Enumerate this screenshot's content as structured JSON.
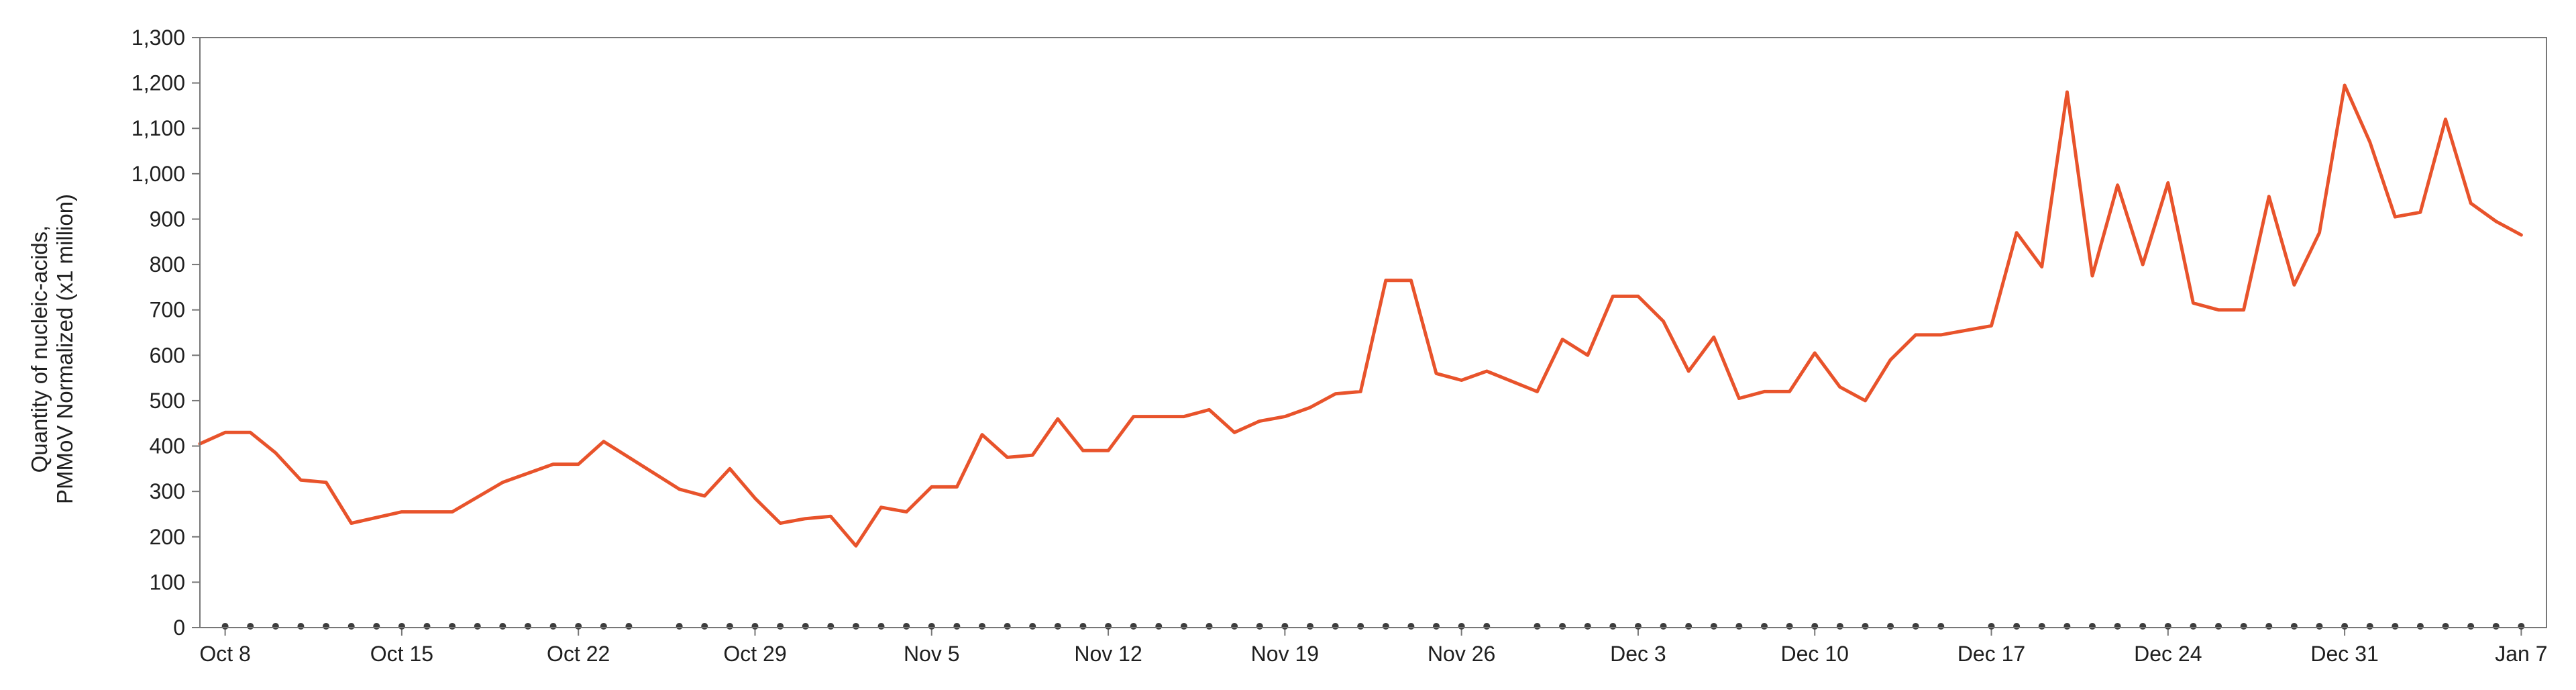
{
  "chart_data": {
    "type": "line",
    "title": "",
    "ylabel_lines": [
      "Quantity of nucleic-acids,",
      "PMMoV Normalized (x1 million)"
    ],
    "xlabel": "",
    "ylim": [
      0,
      1300
    ],
    "y_ticks": [
      0,
      100,
      200,
      300,
      400,
      500,
      600,
      700,
      800,
      900,
      1000,
      1100,
      1200,
      1300
    ],
    "y_tick_labels": [
      "0",
      "100",
      "200",
      "300",
      "400",
      "500",
      "600",
      "700",
      "800",
      "900",
      "1,000",
      "1,100",
      "1,200",
      "1,300"
    ],
    "x_range": [
      "2023-10-08",
      "2024-01-08"
    ],
    "x_ticks": [
      {
        "date": "2023-10-08",
        "label": "Oct 8"
      },
      {
        "date": "2023-10-15",
        "label": "Oct 15"
      },
      {
        "date": "2023-10-22",
        "label": "Oct 22"
      },
      {
        "date": "2023-10-29",
        "label": "Oct 29"
      },
      {
        "date": "2023-11-05",
        "label": "Nov 5"
      },
      {
        "date": "2023-11-12",
        "label": "Nov 12"
      },
      {
        "date": "2023-11-19",
        "label": "Nov 19"
      },
      {
        "date": "2023-11-26",
        "label": "Nov 26"
      },
      {
        "date": "2023-12-03",
        "label": "Dec 3"
      },
      {
        "date": "2023-12-10",
        "label": "Dec 10"
      },
      {
        "date": "2023-12-17",
        "label": "Dec 17"
      },
      {
        "date": "2023-12-24",
        "label": "Dec 24"
      },
      {
        "date": "2023-12-31",
        "label": "Dec 31"
      },
      {
        "date": "2024-01-07",
        "label": "Jan 7"
      }
    ],
    "grid": false,
    "colors": {
      "line": "#e8532b",
      "sample_marker": "#3d3d3d",
      "frame": "#777777"
    },
    "series": [
      {
        "points": [
          [
            "2023-10-07",
            405
          ],
          [
            "2023-10-08",
            430
          ],
          [
            "2023-10-09",
            430
          ],
          [
            "2023-10-10",
            385
          ],
          [
            "2023-10-11",
            325
          ],
          [
            "2023-10-12",
            320
          ],
          [
            "2023-10-13",
            230
          ],
          [
            "2023-10-15",
            255
          ],
          [
            "2023-10-16",
            255
          ],
          [
            "2023-10-17",
            255
          ],
          [
            "2023-10-19",
            320
          ],
          [
            "2023-10-21",
            360
          ],
          [
            "2023-10-22",
            360
          ],
          [
            "2023-10-23",
            410
          ],
          [
            "2023-10-24",
            375
          ],
          [
            "2023-10-26",
            305
          ],
          [
            "2023-10-27",
            290
          ],
          [
            "2023-10-28",
            350
          ],
          [
            "2023-10-29",
            285
          ],
          [
            "2023-10-30",
            230
          ],
          [
            "2023-10-31",
            240
          ],
          [
            "2023-11-01",
            245
          ],
          [
            "2023-11-02",
            180
          ],
          [
            "2023-11-03",
            265
          ],
          [
            "2023-11-04",
            255
          ],
          [
            "2023-11-05",
            310
          ],
          [
            "2023-11-06",
            310
          ],
          [
            "2023-11-07",
            425
          ],
          [
            "2023-11-08",
            375
          ],
          [
            "2023-11-09",
            380
          ],
          [
            "2023-11-10",
            460
          ],
          [
            "2023-11-11",
            390
          ],
          [
            "2023-11-12",
            390
          ],
          [
            "2023-11-13",
            465
          ],
          [
            "2023-11-14",
            465
          ],
          [
            "2023-11-15",
            465
          ],
          [
            "2023-11-16",
            480
          ],
          [
            "2023-11-17",
            430
          ],
          [
            "2023-11-18",
            455
          ],
          [
            "2023-11-19",
            465
          ],
          [
            "2023-11-20",
            485
          ],
          [
            "2023-11-21",
            515
          ],
          [
            "2023-11-22",
            520
          ],
          [
            "2023-11-23",
            765
          ],
          [
            "2023-11-24",
            765
          ],
          [
            "2023-11-25",
            560
          ],
          [
            "2023-11-26",
            545
          ],
          [
            "2023-11-27",
            565
          ],
          [
            "2023-11-29",
            520
          ],
          [
            "2023-11-30",
            635
          ],
          [
            "2023-12-01",
            600
          ],
          [
            "2023-12-02",
            730
          ],
          [
            "2023-12-03",
            730
          ],
          [
            "2023-12-04",
            675
          ],
          [
            "2023-12-05",
            565
          ],
          [
            "2023-12-06",
            640
          ],
          [
            "2023-12-07",
            505
          ],
          [
            "2023-12-08",
            520
          ],
          [
            "2023-12-09",
            520
          ],
          [
            "2023-12-10",
            605
          ],
          [
            "2023-12-11",
            530
          ],
          [
            "2023-12-12",
            500
          ],
          [
            "2023-12-13",
            590
          ],
          [
            "2023-12-14",
            645
          ],
          [
            "2023-12-15",
            645
          ],
          [
            "2023-12-17",
            665
          ],
          [
            "2023-12-18",
            870
          ],
          [
            "2023-12-19",
            795
          ],
          [
            "2023-12-20",
            1180
          ],
          [
            "2023-12-21",
            775
          ],
          [
            "2023-12-22",
            975
          ],
          [
            "2023-12-23",
            800
          ],
          [
            "2023-12-24",
            980
          ],
          [
            "2023-12-25",
            715
          ],
          [
            "2023-12-26",
            700
          ],
          [
            "2023-12-27",
            700
          ],
          [
            "2023-12-28",
            950
          ],
          [
            "2023-12-29",
            755
          ],
          [
            "2023-12-30",
            870
          ],
          [
            "2023-12-31",
            1195
          ],
          [
            "2024-01-01",
            1070
          ],
          [
            "2024-01-02",
            905
          ],
          [
            "2024-01-03",
            915
          ],
          [
            "2024-01-04",
            1120
          ],
          [
            "2024-01-05",
            935
          ],
          [
            "2024-01-06",
            895
          ],
          [
            "2024-01-07",
            865
          ]
        ]
      }
    ],
    "sample_dates": [
      "2023-10-08",
      "2023-10-09",
      "2023-10-10",
      "2023-10-11",
      "2023-10-12",
      "2023-10-13",
      "2023-10-14",
      "2023-10-15",
      "2023-10-16",
      "2023-10-17",
      "2023-10-18",
      "2023-10-19",
      "2023-10-20",
      "2023-10-21",
      "2023-10-22",
      "2023-10-23",
      "2023-10-24",
      "2023-10-26",
      "2023-10-27",
      "2023-10-28",
      "2023-10-29",
      "2023-10-30",
      "2023-10-31",
      "2023-11-01",
      "2023-11-02",
      "2023-11-03",
      "2023-11-04",
      "2023-11-05",
      "2023-11-06",
      "2023-11-07",
      "2023-11-08",
      "2023-11-09",
      "2023-11-10",
      "2023-11-11",
      "2023-11-12",
      "2023-11-13",
      "2023-11-14",
      "2023-11-15",
      "2023-11-16",
      "2023-11-17",
      "2023-11-18",
      "2023-11-19",
      "2023-11-20",
      "2023-11-21",
      "2023-11-22",
      "2023-11-23",
      "2023-11-24",
      "2023-11-25",
      "2023-11-26",
      "2023-11-27",
      "2023-11-29",
      "2023-11-30",
      "2023-12-01",
      "2023-12-02",
      "2023-12-03",
      "2023-12-04",
      "2023-12-05",
      "2023-12-06",
      "2023-12-07",
      "2023-12-08",
      "2023-12-09",
      "2023-12-10",
      "2023-12-11",
      "2023-12-12",
      "2023-12-13",
      "2023-12-14",
      "2023-12-15",
      "2023-12-17",
      "2023-12-18",
      "2023-12-19",
      "2023-12-20",
      "2023-12-21",
      "2023-12-22",
      "2023-12-23",
      "2023-12-24",
      "2023-12-25",
      "2023-12-26",
      "2023-12-27",
      "2023-12-28",
      "2023-12-29",
      "2023-12-30",
      "2023-12-31",
      "2024-01-01",
      "2024-01-02",
      "2024-01-03",
      "2024-01-04",
      "2024-01-05",
      "2024-01-06",
      "2024-01-07"
    ]
  }
}
